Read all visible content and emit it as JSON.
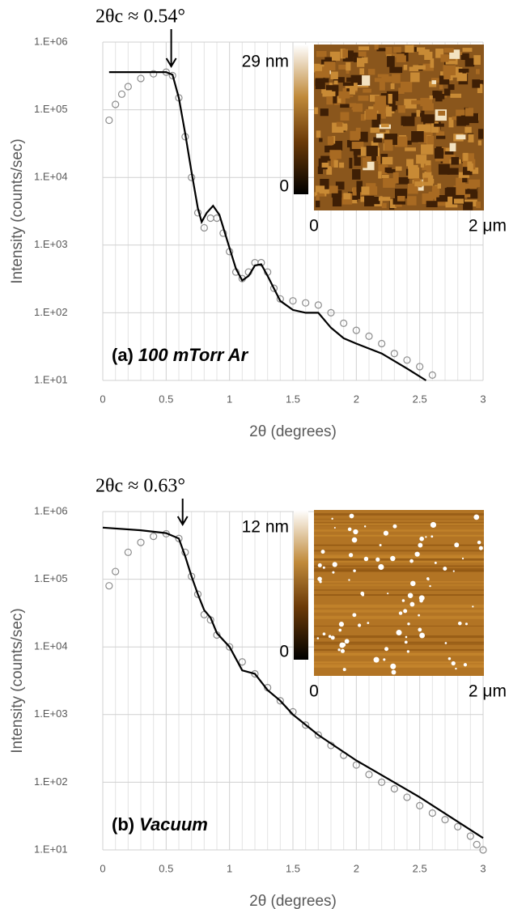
{
  "chart_data": [
    {
      "type": "scatter",
      "yscale": "log",
      "grid": true,
      "minor_grid": true,
      "annotation": "2θc ≈ 0.54°",
      "annotation_x": 0.54,
      "panel_label": "(a)",
      "sample": "100 mTorr Ar",
      "xlabel": "2θ (degrees)",
      "ylabel": "Intensity (counts/sec)",
      "inset": {
        "colorbar_max": "29 nm",
        "colorbar_min": "0",
        "scale_start": "0",
        "scale_end": "2 μm"
      },
      "xlim": [
        0,
        3
      ],
      "xticks": [
        0,
        0.5,
        1,
        1.5,
        2,
        2.5,
        3
      ],
      "ylim": [
        10,
        1000000
      ],
      "yticks": [
        {
          "value": 10,
          "label": "1.E+01"
        },
        {
          "value": 100,
          "label": "1.E+02"
        },
        {
          "value": 1000,
          "label": "1.E+03"
        },
        {
          "value": 10000,
          "label": "1.E+04"
        },
        {
          "value": 100000,
          "label": "1.E+05"
        },
        {
          "value": 1000000,
          "label": "1.E+06"
        }
      ],
      "series": [
        {
          "marker": "circle",
          "color": "#8c8c8c",
          "x": [
            0.05,
            0.1,
            0.15,
            0.2,
            0.3,
            0.4,
            0.5,
            0.55,
            0.6,
            0.65,
            0.7,
            0.75,
            0.8,
            0.85,
            0.9,
            0.95,
            1.0,
            1.05,
            1.1,
            1.15,
            1.2,
            1.25,
            1.3,
            1.35,
            1.4,
            1.5,
            1.6,
            1.7,
            1.8,
            1.9,
            2.0,
            2.1,
            2.2,
            2.3,
            2.4,
            2.5,
            2.6
          ],
          "values": [
            70000,
            120000,
            170000,
            220000,
            290000,
            340000,
            360000,
            320000,
            150000,
            40000,
            10000,
            3000,
            1800,
            2500,
            2500,
            1500,
            800,
            400,
            320,
            400,
            550,
            550,
            400,
            230,
            160,
            150,
            140,
            130,
            100,
            70,
            55,
            45,
            35,
            25,
            20,
            16,
            12
          ]
        },
        {
          "marker": "line",
          "color": "#000000",
          "x": [
            0.05,
            0.5,
            0.55,
            0.6,
            0.65,
            0.7,
            0.75,
            0.78,
            0.82,
            0.87,
            0.92,
            1.0,
            1.05,
            1.1,
            1.15,
            1.2,
            1.25,
            1.3,
            1.4,
            1.5,
            1.6,
            1.7,
            1.8,
            1.9,
            2.0,
            2.2,
            2.4,
            2.55
          ],
          "values": [
            360000,
            360000,
            330000,
            150000,
            45000,
            12000,
            3500,
            2200,
            3000,
            3800,
            2800,
            900,
            450,
            300,
            350,
            500,
            520,
            350,
            150,
            110,
            100,
            100,
            60,
            42,
            35,
            25,
            15,
            10
          ]
        }
      ]
    },
    {
      "type": "scatter",
      "yscale": "log",
      "grid": true,
      "minor_grid": true,
      "annotation": "2θc ≈ 0.63°",
      "annotation_x": 0.63,
      "panel_label": "(b)",
      "sample": "Vacuum",
      "xlabel": "2θ (degrees)",
      "ylabel": "Intensity (counts/sec)",
      "inset": {
        "colorbar_max": "12 nm",
        "colorbar_min": "0",
        "scale_start": "0",
        "scale_end": "2 μm"
      },
      "xlim": [
        0,
        3
      ],
      "xticks": [
        0,
        0.5,
        1,
        1.5,
        2,
        2.5,
        3
      ],
      "ylim": [
        10,
        1000000
      ],
      "yticks": [
        {
          "value": 10,
          "label": "1.E+01"
        },
        {
          "value": 100,
          "label": "1.E+02"
        },
        {
          "value": 1000,
          "label": "1.E+03"
        },
        {
          "value": 10000,
          "label": "1.E+04"
        },
        {
          "value": 100000,
          "label": "1.E+05"
        },
        {
          "value": 1000000,
          "label": "1.E+06"
        }
      ],
      "series": [
        {
          "marker": "circle",
          "color": "#8c8c8c",
          "x": [
            0.05,
            0.1,
            0.2,
            0.3,
            0.4,
            0.5,
            0.6,
            0.65,
            0.7,
            0.75,
            0.8,
            0.85,
            0.9,
            1.0,
            1.1,
            1.2,
            1.3,
            1.4,
            1.5,
            1.6,
            1.7,
            1.8,
            1.9,
            2.0,
            2.1,
            2.2,
            2.3,
            2.4,
            2.5,
            2.6,
            2.7,
            2.8,
            2.9,
            2.95,
            3.0
          ],
          "values": [
            80000,
            130000,
            250000,
            350000,
            430000,
            470000,
            400000,
            250000,
            110000,
            60000,
            30000,
            25000,
            15000,
            10000,
            6000,
            4000,
            2500,
            1600,
            1100,
            700,
            500,
            350,
            250,
            180,
            130,
            100,
            80,
            60,
            45,
            35,
            28,
            22,
            16,
            12,
            10
          ]
        },
        {
          "marker": "line",
          "color": "#000000",
          "x": [
            0,
            0.3,
            0.5,
            0.6,
            0.65,
            0.7,
            0.75,
            0.8,
            0.85,
            0.9,
            1.0,
            1.1,
            1.2,
            1.3,
            1.4,
            1.5,
            1.7,
            2.0,
            2.5,
            3.0
          ],
          "values": [
            580000,
            530000,
            480000,
            400000,
            220000,
            110000,
            60000,
            35000,
            27000,
            16000,
            10000,
            4500,
            4000,
            2300,
            1600,
            1000,
            500,
            210,
            60,
            15
          ]
        }
      ]
    }
  ]
}
